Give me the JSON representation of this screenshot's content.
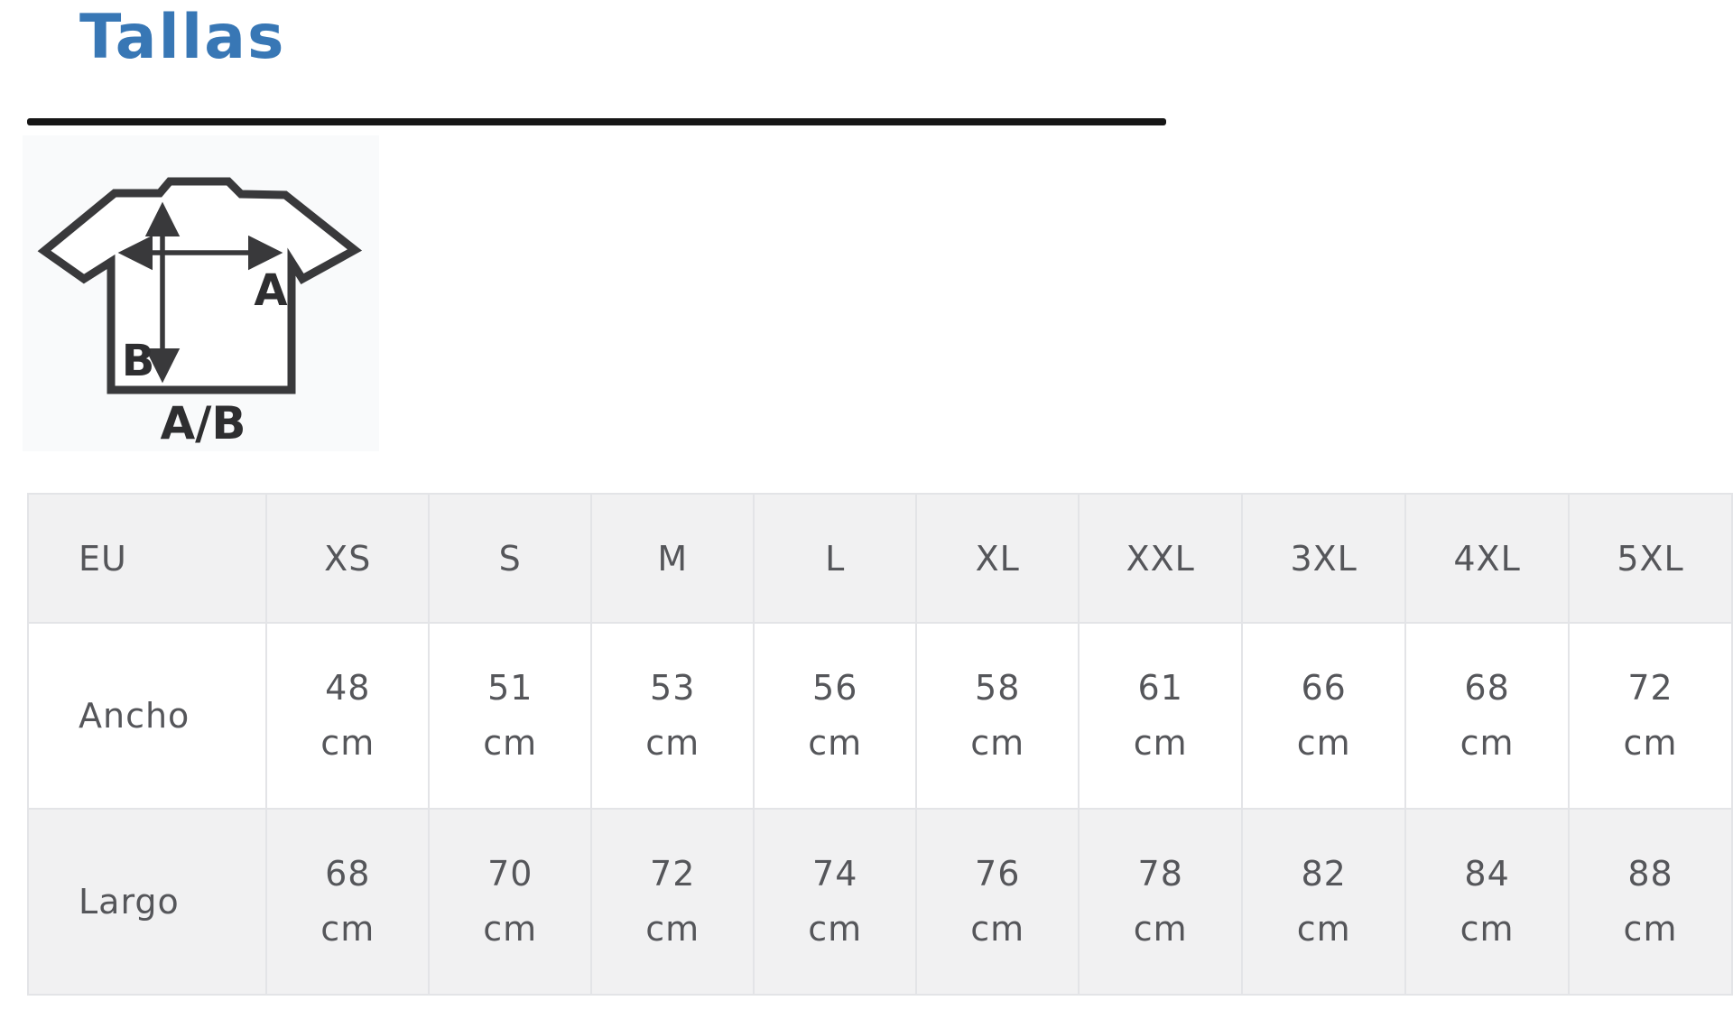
{
  "section": {
    "title": "Tallas"
  },
  "colors": {
    "accent_blue": "#3877b5",
    "underline_black": "#161616",
    "table_shade": "#f1f1f2",
    "table_border": "#e3e4e7",
    "table_text": "#55565a",
    "diagram_ink": "#39393b"
  },
  "diagram": {
    "label_width_arrow": "A",
    "label_length_arrow": "B",
    "caption": "A/B"
  },
  "size_table": {
    "columns": [
      "EU",
      "XS",
      "S",
      "M",
      "L",
      "XL",
      "XXL",
      "3XL",
      "4XL",
      "5XL"
    ],
    "rows": [
      {
        "label": "Ancho",
        "values": [
          "48\ncm",
          "51\ncm",
          "53\ncm",
          "56\ncm",
          "58\ncm",
          "61\ncm",
          "66\ncm",
          "68\ncm",
          "72\ncm"
        ]
      },
      {
        "label": "Largo",
        "values": [
          "68\ncm",
          "70\ncm",
          "72\ncm",
          "74\ncm",
          "76\ncm",
          "78\ncm",
          "82\ncm",
          "84\ncm",
          "88\ncm"
        ]
      }
    ]
  }
}
